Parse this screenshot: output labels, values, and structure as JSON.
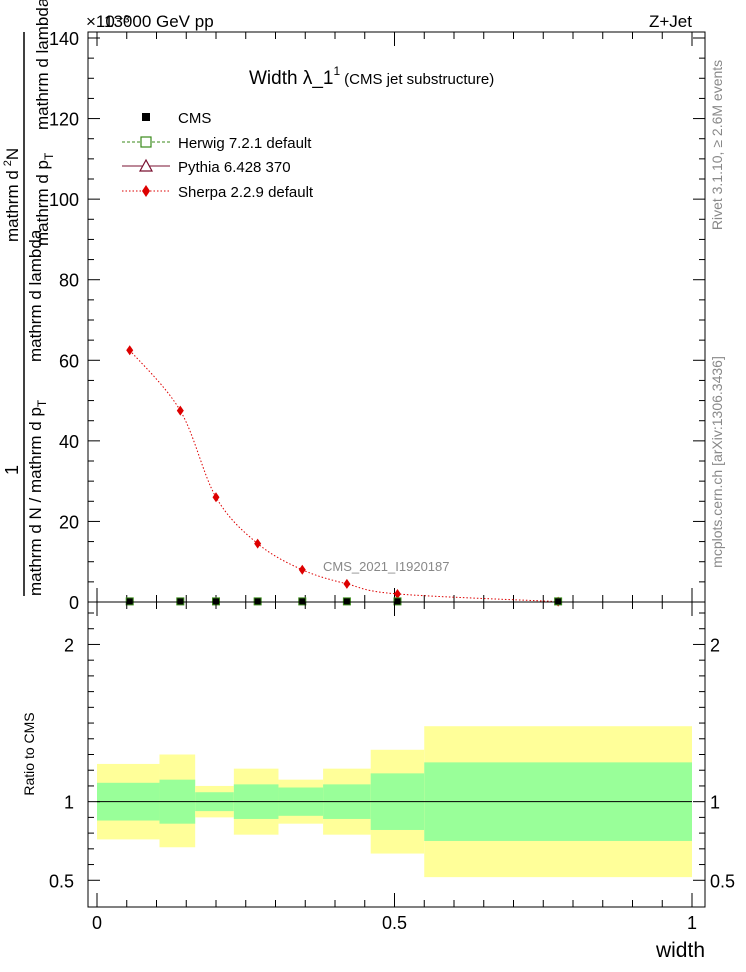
{
  "header": {
    "energy_label": "13000 GeV pp",
    "process_label": "Z+Jet",
    "exponent_label": "×10⁻³"
  },
  "side_labels": {
    "rivet": "Rivet 3.1.10, ≥ 2.6M events",
    "mcplots": "mcplots.cern.ch [arXiv:1306.3436]"
  },
  "chart_data": [
    {
      "type": "line",
      "title_main": "Width λ_1",
      "title_sup": "1",
      "title_sub": "(CMS jet substructure)",
      "analysis_label": "CMS_2021_I1920187",
      "ylabel_parts": {
        "one": "1",
        "denominator": "mathrm d N / mathrm d p",
        "denominator_sub": "T",
        "numerator_a": "mathrm d",
        "numerator_b": "N",
        "numerator_sup": "2",
        "numerator_c": "mathrm d p",
        "numerator_sub": "T",
        "numerator_d": "mathrm d lambda"
      },
      "xlim": [
        0,
        1
      ],
      "ylim": [
        0,
        140
      ],
      "y_ticks": [
        "0",
        "20",
        "40",
        "60",
        "80",
        "100",
        "120",
        "140"
      ],
      "x": [
        0.055,
        0.14,
        0.2,
        0.27,
        0.345,
        0.42,
        0.505,
        0.775
      ],
      "legend": [
        {
          "name": "CMS",
          "marker": "filled-square",
          "color": "#000000"
        },
        {
          "name": "Herwig 7.2.1 default",
          "marker": "open-square",
          "color": "#3a8a1a"
        },
        {
          "name": "Pythia 6.428 370",
          "marker": "open-triangle",
          "color": "#7a1030"
        },
        {
          "name": "Sherpa 2.2.9 default",
          "marker": "diamond",
          "color": "#dd0000"
        }
      ],
      "series": [
        {
          "name": "CMS",
          "values": [
            0.15,
            0.15,
            0.15,
            0.15,
            0.15,
            0.15,
            0.15,
            0.15
          ]
        },
        {
          "name": "Sherpa 2.2.9 default",
          "values": [
            62.5,
            47.5,
            26.0,
            14.5,
            8.0,
            4.5,
            2.0,
            0.1
          ]
        }
      ]
    },
    {
      "type": "area",
      "ylabel": "Ratio to CMS",
      "xlabel": "width",
      "xlim": [
        0,
        1
      ],
      "ylim": [
        0.33,
        2.27
      ],
      "x_ticks": [
        "0",
        "0.5",
        "1"
      ],
      "y_ticks": [
        "0.5",
        "1",
        "2"
      ],
      "reference_line": 1,
      "bins": [
        {
          "x0": 0.0,
          "x1": 0.105,
          "inner": [
            0.88,
            1.12
          ],
          "outer": [
            0.76,
            1.24
          ]
        },
        {
          "x0": 0.105,
          "x1": 0.165,
          "inner": [
            0.86,
            1.14
          ],
          "outer": [
            0.71,
            1.3
          ]
        },
        {
          "x0": 0.165,
          "x1": 0.23,
          "inner": [
            0.94,
            1.06
          ],
          "outer": [
            0.9,
            1.1
          ]
        },
        {
          "x0": 0.23,
          "x1": 0.305,
          "inner": [
            0.89,
            1.11
          ],
          "outer": [
            0.79,
            1.21
          ]
        },
        {
          "x0": 0.305,
          "x1": 0.38,
          "inner": [
            0.91,
            1.09
          ],
          "outer": [
            0.86,
            1.14
          ]
        },
        {
          "x0": 0.38,
          "x1": 0.46,
          "inner": [
            0.89,
            1.11
          ],
          "outer": [
            0.79,
            1.21
          ]
        },
        {
          "x0": 0.46,
          "x1": 0.55,
          "inner": [
            0.82,
            1.18
          ],
          "outer": [
            0.67,
            1.33
          ]
        },
        {
          "x0": 0.55,
          "x1": 1.0,
          "inner": [
            0.75,
            1.25
          ],
          "outer": [
            0.52,
            1.48
          ]
        }
      ]
    }
  ]
}
